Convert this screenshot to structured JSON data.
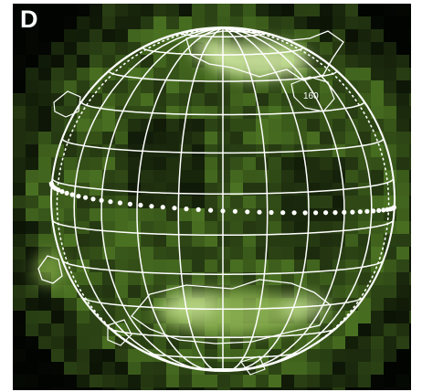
{
  "panel": {
    "letter": "D",
    "contour_label": "160"
  },
  "colors": {
    "background": "#020402",
    "emission": "#5e8f2b",
    "emission_bright": "#d8f0a8",
    "grid": "#ffffff"
  },
  "globe": {
    "meridian_count": 13,
    "parallel_count": 13,
    "limb_marker": "dotted-curves",
    "grid_style": "latitude-longitude",
    "equator_style": "dotted"
  }
}
